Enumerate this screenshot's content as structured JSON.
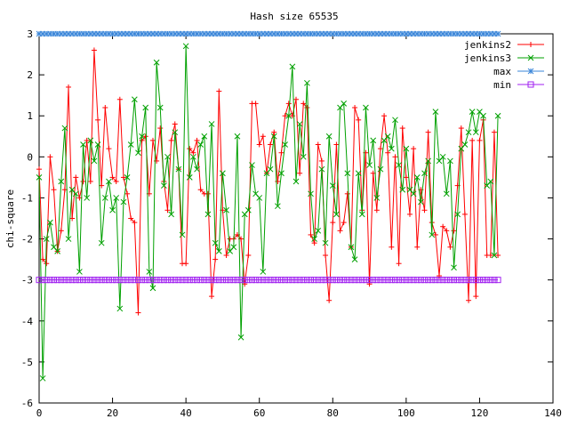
{
  "chart_data": {
    "type": "line",
    "title": "Hash size 65535",
    "xlabel": "",
    "ylabel": "chi-square",
    "xlim": [
      0,
      140
    ],
    "ylim": [
      -6,
      3
    ],
    "xticks": [
      0,
      20,
      40,
      60,
      80,
      100,
      120,
      140
    ],
    "yticks": [
      -6,
      -5,
      -4,
      -3,
      -2,
      -1,
      0,
      1,
      2,
      3
    ],
    "grid": false,
    "legend_position": "top-right",
    "series": [
      {
        "name": "jenkins2",
        "color": "#ff0000",
        "marker": "plus",
        "x_start": 0,
        "values": [
          -0.3,
          -2.5,
          -2.6,
          0.0,
          -0.8,
          -2.3,
          -1.8,
          -0.8,
          1.7,
          -1.5,
          -0.5,
          -1.0,
          -0.6,
          0.4,
          -0.6,
          2.6,
          0.9,
          -0.7,
          1.2,
          0.2,
          -0.5,
          -0.6,
          1.4,
          -0.5,
          -0.9,
          -1.5,
          -1.6,
          -3.8,
          0.4,
          0.5,
          -0.9,
          0.4,
          -0.1,
          0.7,
          -0.6,
          -1.3,
          0.4,
          0.8,
          -0.3,
          -2.6,
          -2.6,
          0.2,
          0.1,
          0.4,
          -0.8,
          -0.9,
          -0.9,
          -3.4,
          -2.5,
          1.6,
          -1.3,
          -2.4,
          -2.0,
          -2.0,
          -1.9,
          -2.0,
          -3.1,
          -2.4,
          1.3,
          1.3,
          0.3,
          0.5,
          -0.4,
          0.3,
          0.6,
          -0.6,
          0.1,
          1.0,
          1.3,
          1.0,
          1.4,
          -0.4,
          1.3,
          1.2,
          -1.9,
          -2.1,
          0.3,
          -0.1,
          -2.4,
          -3.5,
          -1.6,
          0.3,
          -1.8,
          -1.6,
          -0.9,
          -2.2,
          1.2,
          0.9,
          -1.3,
          0.1,
          -3.1,
          -0.4,
          -1.3,
          0.2,
          1.0,
          0.1,
          -2.2,
          0.0,
          -2.6,
          0.7,
          -0.5,
          -1.4,
          0.2,
          -2.2,
          -0.8,
          -1.3,
          0.6,
          -1.6,
          -1.9,
          -2.9,
          -1.7,
          -1.8,
          -2.2,
          -1.8,
          -0.7,
          0.7,
          -1.4,
          -3.5,
          0.4,
          -3.4,
          0.4,
          0.9,
          -2.4,
          -2.4,
          0.6,
          -2.4
        ],
        "values_note": null
      },
      {
        "name": "jenkins3",
        "color": "#00a000",
        "marker": "cross",
        "x_start": 0,
        "values": [
          -0.5,
          -5.4,
          -2.0,
          -1.6,
          -2.2,
          -2.3,
          -0.6,
          0.7,
          -2.0,
          -0.8,
          -0.9,
          -2.8,
          0.3,
          -1.0,
          0.4,
          -0.1,
          0.3,
          -2.1,
          -1.0,
          -0.6,
          -1.3,
          -1.0,
          -3.7,
          -1.1,
          -0.5,
          0.3,
          1.4,
          0.1,
          0.5,
          1.2,
          -2.8,
          -3.2,
          2.3,
          1.2,
          -0.7,
          0.0,
          -1.4,
          0.6,
          -0.3,
          -1.9,
          2.7,
          -0.5,
          0.0,
          -0.3,
          0.3,
          0.5,
          -1.4,
          0.8,
          -2.1,
          -2.3,
          -0.4,
          -1.3,
          -2.3,
          -2.2,
          0.5,
          -4.4,
          -1.4,
          -1.3,
          -0.2,
          -0.9,
          -1.0,
          -2.8,
          -0.4,
          -0.3,
          0.5,
          -1.2,
          -0.4,
          0.3,
          1.0,
          2.2,
          -0.6,
          0.8,
          0.0,
          1.8,
          -0.9,
          -2.0,
          -1.8,
          -0.3,
          -2.1,
          0.5,
          -0.7,
          -1.4,
          1.2,
          1.3,
          -0.4,
          -2.2,
          -2.5,
          -0.4,
          -1.4,
          1.2,
          -0.2,
          0.4,
          -1.0,
          -0.3,
          0.4,
          0.5,
          0.2,
          0.9,
          -0.2,
          -0.8,
          0.2,
          -0.8,
          -0.9,
          -0.5,
          -1.1,
          -0.4,
          -0.1,
          -1.9,
          1.1,
          -0.1,
          0.0,
          -0.9,
          -0.1,
          -2.7,
          -1.4,
          0.2,
          0.3,
          0.6,
          1.1,
          0.6,
          1.1,
          1.0,
          -0.7,
          -0.6,
          -2.4,
          1.0
        ],
        "values_note": null
      },
      {
        "name": "max",
        "color": "#3a86d9",
        "marker": "star",
        "x_start": 0,
        "constant": 3,
        "count": 126
      },
      {
        "name": "min",
        "color": "#a020f0",
        "marker": "square",
        "x_start": 0,
        "constant": -3,
        "count": 126
      }
    ]
  }
}
